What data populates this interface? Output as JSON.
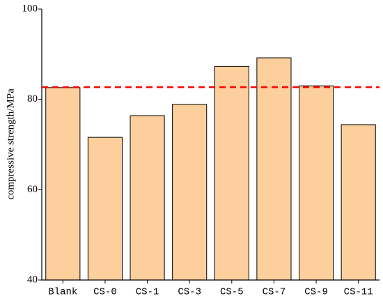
{
  "chart_data": {
    "type": "bar",
    "y_label": "compressive strength/MPa",
    "categories": [
      "Blank",
      "CS-0",
      "CS-1",
      "CS-3",
      "CS-5",
      "CS-7",
      "CS-9",
      "CS-11"
    ],
    "values": [
      82.6,
      71.6,
      76.4,
      78.9,
      87.3,
      89.2,
      83.0,
      74.4
    ],
    "color": "#fccf9c",
    "ylim": [
      40,
      100
    ],
    "yticks": [
      40,
      60,
      80,
      100
    ],
    "reference_line": {
      "value": 82.7,
      "color": "#ff0000"
    }
  }
}
